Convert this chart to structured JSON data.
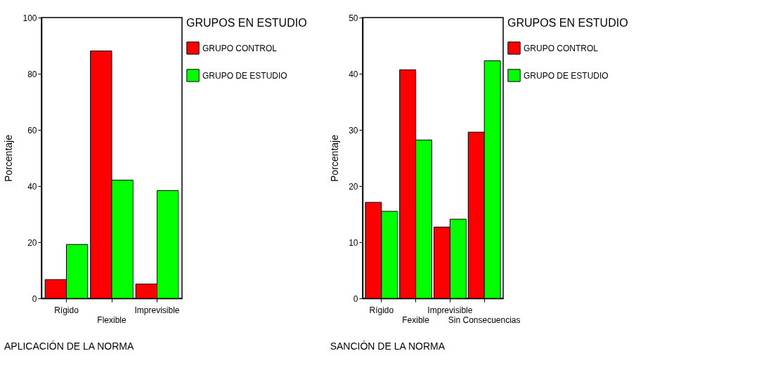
{
  "chart_data": [
    {
      "type": "bar",
      "title": "APLICACIÓN DE LA NORMA",
      "ylabel": "Porcentaje",
      "legend_title": "GRUPOS EN ESTUDIO",
      "legend": "right",
      "categories": [
        "Rígido",
        "Flexible",
        "Imprevisible"
      ],
      "ylim": [
        0,
        100
      ],
      "yticks": [
        0,
        20,
        40,
        60,
        80,
        100
      ],
      "series": [
        {
          "name": "GRUPO CONTROL",
          "color": "#ff0000",
          "values": [
            6.7,
            88.1,
            5.1
          ]
        },
        {
          "name": "GRUPO DE ESTUDIO",
          "color": "#00ff00",
          "values": [
            19.2,
            42.1,
            38.4
          ]
        }
      ]
    },
    {
      "type": "bar",
      "title": "SANCIÓN DE LA NORMA",
      "ylabel": "Porcentaje",
      "legend_title": "GRUPOS EN ESTUDIO",
      "legend": "right",
      "categories": [
        "Rígido",
        "Fexible",
        "Imprevisible",
        "Sin Consecuencias"
      ],
      "ylim": [
        0,
        50
      ],
      "yticks": [
        0,
        10,
        20,
        30,
        40,
        50
      ],
      "series": [
        {
          "name": "GRUPO CONTROL",
          "color": "#ff0000",
          "values": [
            17.1,
            40.7,
            12.7,
            29.6
          ]
        },
        {
          "name": "GRUPO DE ESTUDIO",
          "color": "#00ff00",
          "values": [
            15.5,
            28.2,
            14.1,
            42.3
          ]
        }
      ]
    }
  ]
}
